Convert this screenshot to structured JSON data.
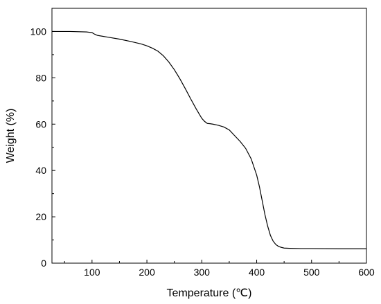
{
  "chart_data": {
    "type": "line",
    "title": "",
    "xlabel": "Temperature (℃)",
    "ylabel": "Weight (%)",
    "xlim": [
      27,
      600
    ],
    "ylim": [
      0,
      110
    ],
    "x_ticks": [
      100,
      200,
      300,
      400,
      500,
      600
    ],
    "y_ticks": [
      0,
      20,
      40,
      60,
      80,
      100
    ],
    "grid": false,
    "line_color": "#000000",
    "series": [
      {
        "x": [
          27,
          60,
          90,
          100,
          105,
          110,
          130,
          150,
          170,
          190,
          200,
          210,
          220,
          230,
          240,
          250,
          260,
          270,
          280,
          290,
          300,
          305,
          310,
          315,
          320,
          330,
          340,
          350,
          360,
          370,
          380,
          390,
          400,
          405,
          410,
          415,
          420,
          425,
          430,
          435,
          440,
          445,
          450,
          460,
          480,
          500,
          550,
          600
        ],
        "y": [
          100,
          100,
          99.8,
          99.5,
          98.8,
          98.3,
          97.5,
          96.7,
          95.7,
          94.6,
          93.8,
          92.8,
          91.5,
          89.5,
          86.8,
          83.5,
          79.6,
          75.3,
          70.8,
          66.5,
          62.5,
          61.2,
          60.3,
          60.2,
          60.0,
          59.5,
          58.8,
          57.5,
          55.0,
          52.5,
          49.5,
          45.0,
          38.0,
          33.0,
          27.0,
          21.0,
          16.0,
          12.0,
          9.5,
          8.0,
          7.2,
          6.8,
          6.5,
          6.4,
          6.3,
          6.3,
          6.2,
          6.2
        ]
      }
    ]
  }
}
